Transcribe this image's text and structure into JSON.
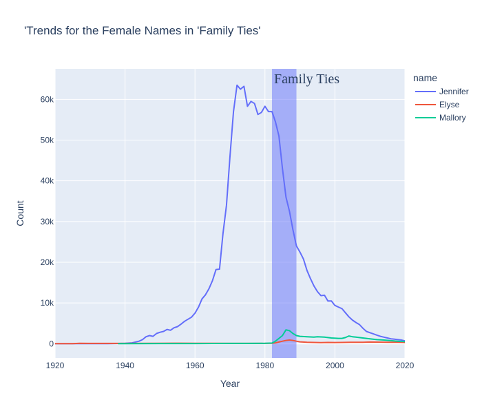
{
  "chart_data": {
    "type": "line",
    "title": "'Trends for the Female Names in 'Family Ties'",
    "xlabel": "Year",
    "ylabel": "Count",
    "xlim": [
      1920,
      2020
    ],
    "ylim": [
      -3500,
      67500
    ],
    "x_ticks": [
      1920,
      1940,
      1960,
      1980,
      2000,
      2020
    ],
    "y_ticks": [
      0,
      10000,
      20000,
      30000,
      40000,
      50000,
      60000
    ],
    "y_tick_labels": [
      "0",
      "10k",
      "20k",
      "30k",
      "40k",
      "50k",
      "60k"
    ],
    "grid": true,
    "legend": {
      "title": "name",
      "placement": "top-right"
    },
    "background_color": "#e5ecf6",
    "shaded_region": {
      "x0": 1982,
      "x1": 1989,
      "color": "#6470fa",
      "label": "Family Ties"
    },
    "series": [
      {
        "name": "Jennifer",
        "color": "#636efa",
        "points": [
          [
            1920,
            0
          ],
          [
            1925,
            0
          ],
          [
            1930,
            0
          ],
          [
            1935,
            0
          ],
          [
            1938,
            50
          ],
          [
            1940,
            80
          ],
          [
            1942,
            200
          ],
          [
            1944,
            600
          ],
          [
            1945,
            1000
          ],
          [
            1946,
            1700
          ],
          [
            1947,
            2000
          ],
          [
            1948,
            1800
          ],
          [
            1949,
            2500
          ],
          [
            1950,
            2800
          ],
          [
            1951,
            3000
          ],
          [
            1952,
            3500
          ],
          [
            1953,
            3300
          ],
          [
            1954,
            3900
          ],
          [
            1955,
            4200
          ],
          [
            1956,
            4800
          ],
          [
            1957,
            5500
          ],
          [
            1958,
            6000
          ],
          [
            1959,
            6500
          ],
          [
            1960,
            7500
          ],
          [
            1961,
            9000
          ],
          [
            1962,
            11000
          ],
          [
            1963,
            12000
          ],
          [
            1964,
            13500
          ],
          [
            1965,
            15500
          ],
          [
            1966,
            18200
          ],
          [
            1967,
            18300
          ],
          [
            1968,
            27000
          ],
          [
            1969,
            34000
          ],
          [
            1970,
            46000
          ],
          [
            1971,
            57000
          ],
          [
            1972,
            63500
          ],
          [
            1973,
            62500
          ],
          [
            1974,
            63200
          ],
          [
            1975,
            58300
          ],
          [
            1976,
            59500
          ],
          [
            1977,
            59000
          ],
          [
            1978,
            56300
          ],
          [
            1979,
            56800
          ],
          [
            1980,
            58300
          ],
          [
            1981,
            57000
          ],
          [
            1982,
            57000
          ],
          [
            1983,
            54500
          ],
          [
            1984,
            51000
          ],
          [
            1985,
            43000
          ],
          [
            1986,
            36000
          ],
          [
            1987,
            32500
          ],
          [
            1988,
            28000
          ],
          [
            1989,
            24000
          ],
          [
            1990,
            22500
          ],
          [
            1991,
            20800
          ],
          [
            1992,
            18000
          ],
          [
            1993,
            16000
          ],
          [
            1994,
            14200
          ],
          [
            1995,
            12800
          ],
          [
            1996,
            11800
          ],
          [
            1997,
            11900
          ],
          [
            1998,
            10500
          ],
          [
            1999,
            10500
          ],
          [
            2000,
            9400
          ],
          [
            2001,
            9000
          ],
          [
            2002,
            8600
          ],
          [
            2003,
            7600
          ],
          [
            2004,
            6600
          ],
          [
            2005,
            5800
          ],
          [
            2006,
            5200
          ],
          [
            2007,
            4700
          ],
          [
            2008,
            3800
          ],
          [
            2009,
            3000
          ],
          [
            2010,
            2700
          ],
          [
            2011,
            2400
          ],
          [
            2012,
            2100
          ],
          [
            2013,
            1800
          ],
          [
            2014,
            1600
          ],
          [
            2015,
            1400
          ],
          [
            2016,
            1200
          ],
          [
            2017,
            1100
          ],
          [
            2018,
            1000
          ],
          [
            2019,
            900
          ],
          [
            2020,
            700
          ]
        ]
      },
      {
        "name": "Elyse",
        "color": "#ef553b",
        "points": [
          [
            1920,
            0
          ],
          [
            1925,
            0
          ],
          [
            1927,
            80
          ],
          [
            1930,
            70
          ],
          [
            1935,
            60
          ],
          [
            1940,
            70
          ],
          [
            1950,
            100
          ],
          [
            1955,
            120
          ],
          [
            1960,
            80
          ],
          [
            1965,
            80
          ],
          [
            1970,
            70
          ],
          [
            1975,
            60
          ],
          [
            1980,
            70
          ],
          [
            1982,
            80
          ],
          [
            1983,
            200
          ],
          [
            1984,
            400
          ],
          [
            1985,
            600
          ],
          [
            1986,
            800
          ],
          [
            1987,
            900
          ],
          [
            1988,
            800
          ],
          [
            1989,
            600
          ],
          [
            1990,
            450
          ],
          [
            1992,
            350
          ],
          [
            1994,
            300
          ],
          [
            1996,
            250
          ],
          [
            1998,
            300
          ],
          [
            2000,
            280
          ],
          [
            2002,
            300
          ],
          [
            2005,
            350
          ],
          [
            2008,
            350
          ],
          [
            2010,
            400
          ],
          [
            2012,
            380
          ],
          [
            2015,
            350
          ],
          [
            2018,
            330
          ],
          [
            2020,
            300
          ]
        ]
      },
      {
        "name": "Mallory",
        "color": "#00cc96",
        "points": [
          [
            1938,
            0
          ],
          [
            1940,
            0
          ],
          [
            1950,
            30
          ],
          [
            1960,
            40
          ],
          [
            1970,
            60
          ],
          [
            1975,
            70
          ],
          [
            1980,
            80
          ],
          [
            1982,
            150
          ],
          [
            1983,
            600
          ],
          [
            1984,
            1300
          ],
          [
            1985,
            2000
          ],
          [
            1986,
            3400
          ],
          [
            1987,
            3200
          ],
          [
            1988,
            2500
          ],
          [
            1989,
            2000
          ],
          [
            1990,
            1800
          ],
          [
            1992,
            1700
          ],
          [
            1994,
            1600
          ],
          [
            1995,
            1700
          ],
          [
            1997,
            1600
          ],
          [
            1999,
            1400
          ],
          [
            2001,
            1300
          ],
          [
            2002,
            1300
          ],
          [
            2003,
            1500
          ],
          [
            2004,
            1900
          ],
          [
            2005,
            1700
          ],
          [
            2006,
            1600
          ],
          [
            2008,
            1400
          ],
          [
            2010,
            1200
          ],
          [
            2012,
            1000
          ],
          [
            2014,
            900
          ],
          [
            2016,
            750
          ],
          [
            2018,
            600
          ],
          [
            2020,
            500
          ]
        ]
      }
    ]
  }
}
